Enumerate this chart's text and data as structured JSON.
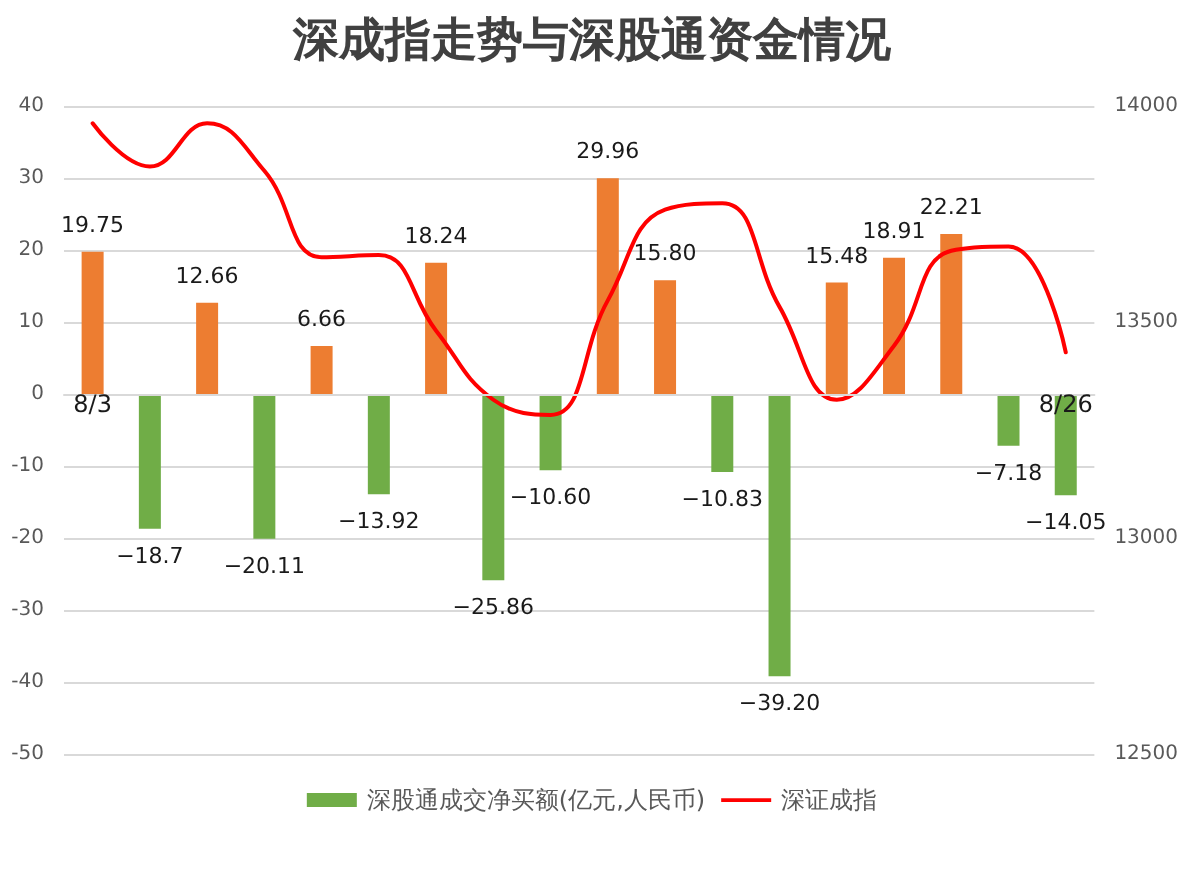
{
  "chart_data": {
    "type": "bar",
    "title": "深成指走势与深股通资金情况",
    "categories": [
      "8/3",
      null,
      null,
      null,
      null,
      null,
      null,
      null,
      null,
      null,
      null,
      null,
      null,
      null,
      null,
      null,
      null,
      "8/26"
    ],
    "series": [
      {
        "name": "深股通成交净买额(亿元,人民币)",
        "color": "#70ad47",
        "colors": [
          "#ed7d31",
          "#70ad47",
          "#ed7d31",
          "#70ad47",
          "#ed7d31",
          "#70ad47",
          "#ed7d31",
          "#70ad47",
          "#70ad47",
          "#ed7d31",
          "#ed7d31",
          "#70ad47",
          "#70ad47",
          "#ed7d31",
          "#ed7d31",
          "#ed7d31",
          "#70ad47",
          "#70ad47"
        ],
        "values": [
          19.75,
          -18.7,
          12.66,
          -20.11,
          6.66,
          -13.92,
          18.24,
          -25.86,
          -10.6,
          29.96,
          15.8,
          -10.83,
          -39.2,
          15.48,
          18.91,
          22.21,
          -7.18,
          -14.05
        ],
        "value_labels": [
          "19.75",
          "−18.7",
          "12.66",
          "−20.11",
          "6.66",
          "−13.92",
          "18.24",
          "−25.86",
          "−10.60",
          "29.96",
          "15.80",
          "−10.83",
          "−39.20",
          "15.48",
          "18.91",
          "22.21",
          "−7.18",
          "−14.05"
        ]
      },
      {
        "name": "深证成指",
        "type": "line",
        "axis": "y2",
        "color": "#ff0000",
        "values": [
          13960,
          13860,
          13960,
          13850,
          13650,
          13655,
          13480,
          13320,
          13285,
          13550,
          13760,
          13775,
          13535,
          13320,
          13445,
          13665,
          13675,
          13430
        ]
      }
    ],
    "ylim": [
      -50,
      40
    ],
    "yticks": [
      -50,
      -40,
      -30,
      -20,
      -10,
      0,
      10,
      20,
      30,
      40
    ],
    "y2lim": [
      12500,
      14000
    ],
    "y2ticks": [
      12500,
      13000,
      13500,
      14000
    ],
    "grid": "y",
    "legend": "bottom",
    "marker": "none",
    "line_style": "solid"
  }
}
